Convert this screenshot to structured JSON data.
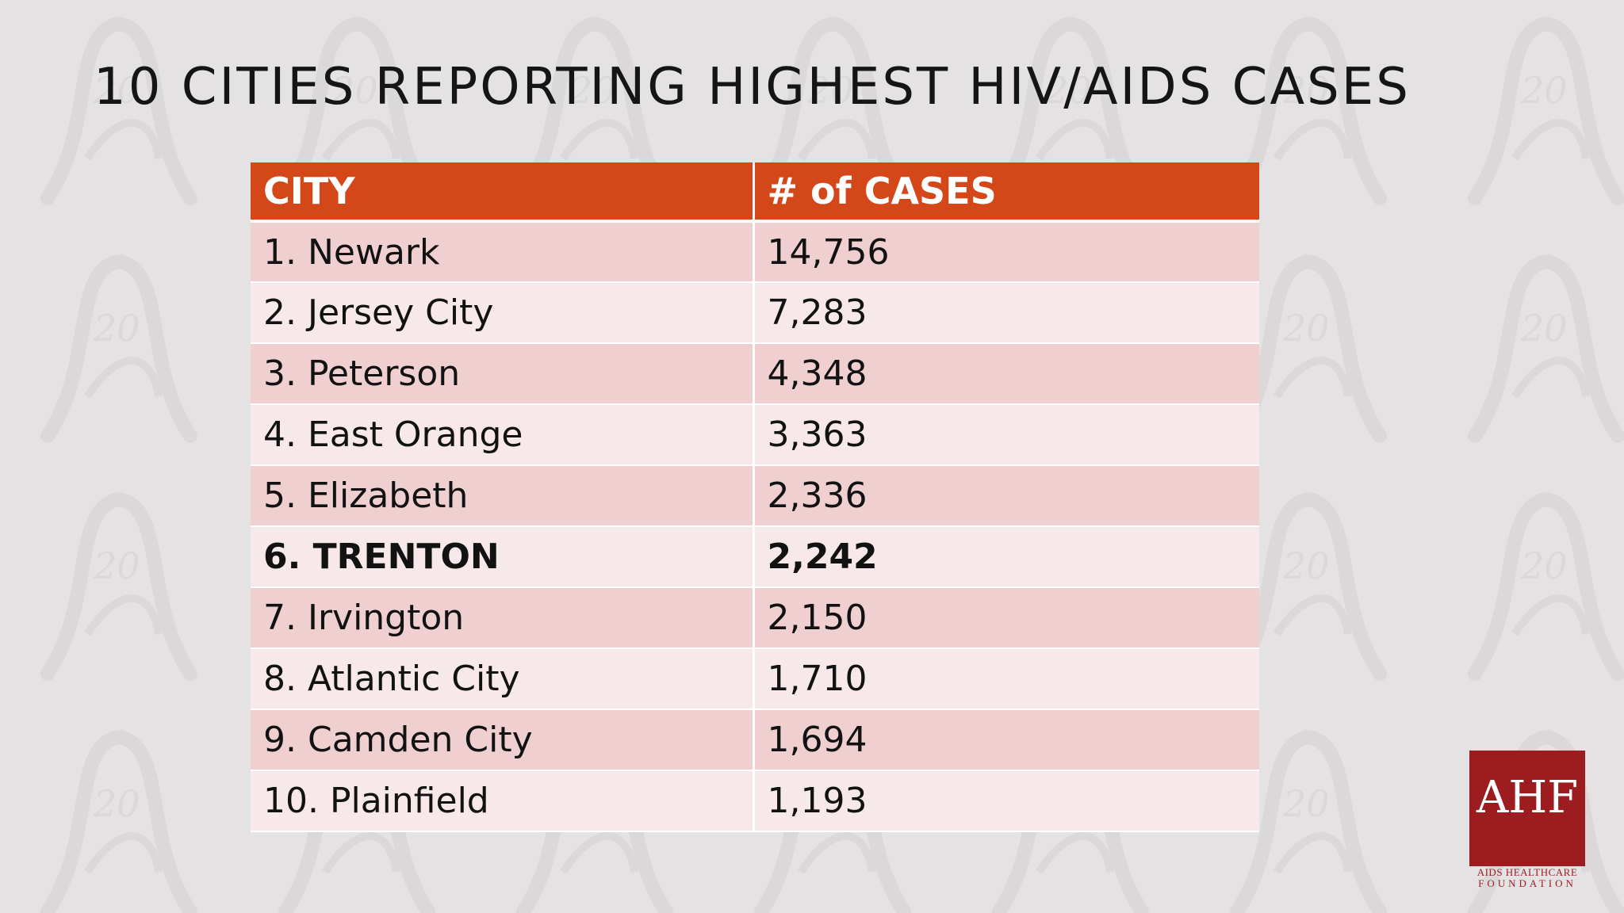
{
  "slide": {
    "title": "10 CITIES REPORTING HIGHEST HIV/AIDS CASES"
  },
  "table": {
    "headers": [
      "CITY",
      "# of CASES"
    ],
    "rows": [
      {
        "city": "1. Newark",
        "cases": "14,756"
      },
      {
        "city": "2. Jersey City",
        "cases": "7,283"
      },
      {
        "city": "3. Peterson",
        "cases": "4,348"
      },
      {
        "city": "4. East Orange",
        "cases": "3,363"
      },
      {
        "city": "5. Elizabeth",
        "cases": "2,336"
      },
      {
        "city": "6. TRENTON",
        "cases": "2,242"
      },
      {
        "city": "7. Irvington",
        "cases": "2,150"
      },
      {
        "city": "8. Atlantic City",
        "cases": "1,710"
      },
      {
        "city": "9. Camden City",
        "cases": "1,694"
      },
      {
        "city": "10. Plainfield",
        "cases": "1,193"
      }
    ],
    "highlighted_row": "6. TRENTON"
  },
  "logo": {
    "text": "AHF",
    "caption_line1": "AIDS HEALTHCARE",
    "caption_line2": "FOUNDATION"
  },
  "colors": {
    "background": "#e4e2e3",
    "header_fill": "#d44718",
    "row_odd": "#efcfcf",
    "row_even": "#f7e8e9",
    "logo_red": "#9c1c1f"
  }
}
